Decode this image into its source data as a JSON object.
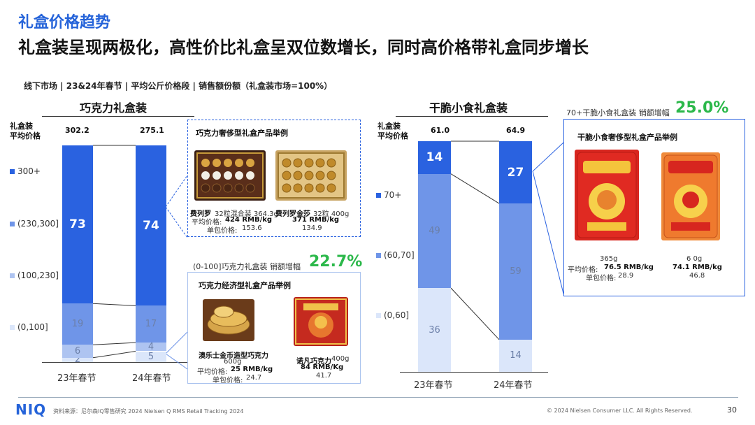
{
  "header": {
    "title": "礼盒价格趋势",
    "headline": "礼盒装呈现两极化，高性价比礼盒呈双位数增长，同时高价格带礼盒同步增长",
    "subtitle": "线下市场 | 23&24年春节 | 平均公斤价格段 | 销售额份额（礼盒装市场=100%）"
  },
  "colors": {
    "accent": "#2563d9",
    "s300": "#2a62e0",
    "s230": "#6f95e8",
    "s100": "#aec4f1",
    "s0": "#dbe6fa",
    "growth": "#2bb84a"
  },
  "chart_data": [
    {
      "type": "bar",
      "stacked": true,
      "title": "巧克力礼盒装",
      "ylabel": "礼盒装\n平均价格",
      "categories": [
        "23年春节",
        "24年春节"
      ],
      "avg_price": [
        "302.2",
        "275.1"
      ],
      "series": [
        {
          "name": "(0,100]",
          "values": [
            2,
            5
          ]
        },
        {
          "name": "(100,230]",
          "values": [
            6,
            4
          ]
        },
        {
          "name": "(230,300]",
          "values": [
            19,
            17
          ]
        },
        {
          "name": "300+",
          "values": [
            73,
            74
          ]
        }
      ]
    },
    {
      "type": "bar",
      "stacked": true,
      "title": "干脆小食礼盒装",
      "ylabel": "礼盒装\n平均价格",
      "categories": [
        "23年春节",
        "24年春节"
      ],
      "avg_price": [
        "61.0",
        "64.9"
      ],
      "series": [
        {
          "name": "(0,60]",
          "values": [
            36,
            14
          ]
        },
        {
          "name": "(60,70]",
          "values": [
            49,
            59
          ]
        },
        {
          "name": "70+",
          "values": [
            14,
            27
          ]
        }
      ]
    }
  ],
  "choc_luxury": {
    "title": "巧克力奢侈型礼盒产品举例",
    "p1_name": "费列罗",
    "p1_desc": "32粒混合装 364.3g",
    "p2_name": "费列罗金莎",
    "p2_desc": "32粒 400g",
    "avg_label": "平均价格:",
    "p1_avg": "424 RMB/kg",
    "p2_avg": "371  RMB/kg",
    "unit_label": "单包价格:",
    "p1_unit": "153.6",
    "p2_unit": "134.9"
  },
  "choc_economy": {
    "growth_label": "(0-100]巧克力礼盒装 销额增幅",
    "growth_value": "22.7%",
    "title": "巧克力经济型礼盒产品举例",
    "p1_name": "澳乐士金币造型巧克力",
    "p1_weight": "600g",
    "p1_avg_label": "平均价格:",
    "p1_avg": "25 RMB/kg",
    "p1_unit_label": "单包价格:",
    "p1_unit": "24.7",
    "p2_name": "诺凡巧克力",
    "p2_weight": "400g",
    "p2_avg": "84 RMB/Kg",
    "p2_unit": "41.7"
  },
  "snack_luxury": {
    "growth_label": "70+干脆小食礼盒装 销额增幅",
    "growth_value": "25.0%",
    "title": "干脆小食奢侈型礼盒产品举例",
    "p1_weight": "365g",
    "p2_weight": "6 0g",
    "avg_label": "平均价格:",
    "p1_avg": "76.5 RMB/kg",
    "p2_avg": "74.1 RMB/kg",
    "unit_label": "单包价格:",
    "p1_unit": "28.9",
    "p2_unit": "46.8"
  },
  "footer": {
    "source": "资料来源：尼尔森IQ零售研究 2024 Nielsen Q RMS Retail Tracking 2024",
    "copyright": "© 2024 Nielsen Consumer LLC. All Rights Reserved.",
    "page": "30",
    "logo": "NIQ"
  }
}
